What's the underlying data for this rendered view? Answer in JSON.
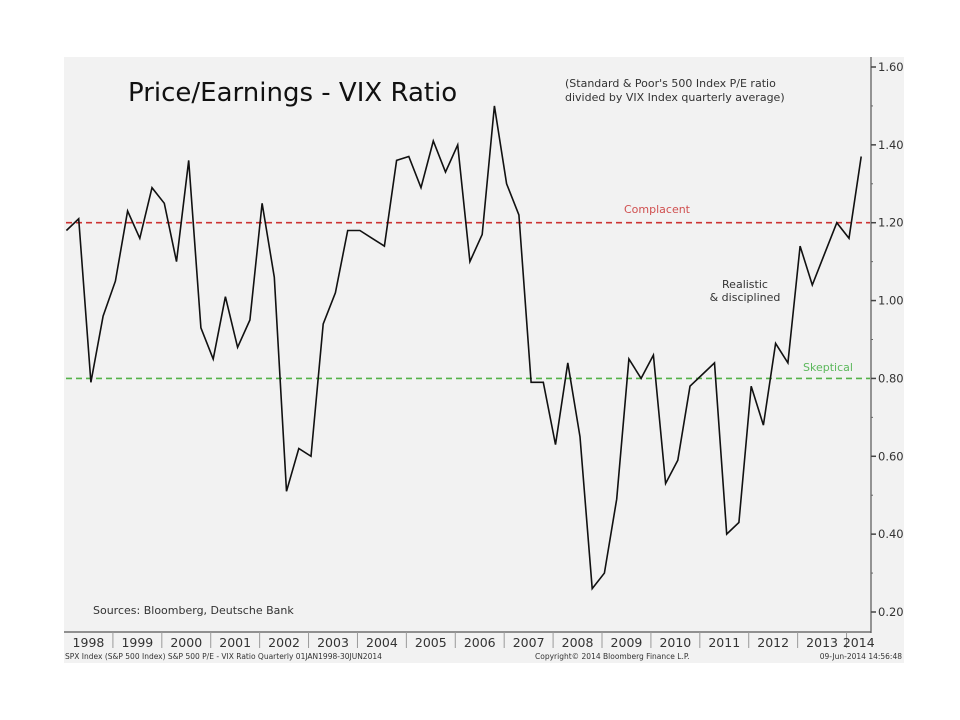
{
  "chart_data": {
    "type": "line",
    "title": "Price/Earnings - VIX Ratio",
    "subtitle": [
      "(Standard & Poor's 500 Index P/E ratio",
      "divided by VIX Index quarterly average)"
    ],
    "xlabel": "",
    "ylabel": "",
    "ylim": [
      0.15,
      1.62
    ],
    "yticks": [
      1.6,
      1.4,
      1.2,
      1.0,
      0.8,
      0.6,
      0.4,
      0.2
    ],
    "ytick_labels": [
      "1.60",
      "1.40",
      "1.20",
      "1.00",
      "0.80",
      "0.60",
      "0.40",
      "0.20"
    ],
    "y_axis_side": "right",
    "x_start_year": 1998,
    "x_end_year": 2014.5,
    "x_categories": [
      "1998",
      "1999",
      "2000",
      "2001",
      "2002",
      "2003",
      "2004",
      "2005",
      "2006",
      "2007",
      "2008",
      "2009",
      "2010",
      "2011",
      "2012",
      "2013",
      "2014"
    ],
    "frequency": "quarterly",
    "grid": false,
    "legend": "none",
    "series": [
      {
        "name": "S&P 500 P/E - VIX Ratio",
        "color": "#111111",
        "values": [
          1.18,
          1.21,
          0.79,
          0.96,
          1.05,
          1.23,
          1.16,
          1.29,
          1.25,
          1.1,
          1.36,
          0.93,
          0.85,
          1.01,
          0.88,
          0.95,
          1.25,
          1.06,
          0.51,
          0.62,
          0.6,
          0.94,
          1.02,
          1.18,
          1.18,
          1.16,
          1.14,
          1.36,
          1.37,
          1.29,
          1.41,
          1.33,
          1.4,
          1.1,
          1.17,
          1.5,
          1.3,
          1.22,
          0.79,
          0.79,
          0.63,
          0.84,
          0.65,
          0.26,
          0.3,
          0.49,
          0.85,
          0.8,
          0.86,
          0.53,
          0.59,
          0.78,
          0.81,
          0.84,
          0.4,
          0.43,
          0.78,
          0.68,
          0.89,
          0.84,
          1.14,
          1.04,
          1.12,
          1.2,
          1.16,
          1.37
        ]
      }
    ],
    "reference_lines": [
      {
        "name": "Complacent",
        "value": 1.2,
        "color": "#cc3333",
        "label_color": "#d05050"
      },
      {
        "name": "Skeptical",
        "value": 0.8,
        "color": "#55b34a",
        "label_color": "#5cb85c"
      }
    ],
    "annotations": [
      {
        "text": [
          "Realistic",
          "& disciplined"
        ],
        "x_year": 2013.0,
        "y": 1.03,
        "color": "#333333"
      }
    ],
    "source_note": "Sources: Bloomberg, Deutsche Bank"
  },
  "footer": {
    "left": "SPX Index (S&P 500 Index) S&P 500 P/E - VIX Ratio  Quarterly 01JAN1998-30JUN2014",
    "center": "Copyright© 2014 Bloomberg Finance L.P.",
    "right": "09-Jun-2014 14:56:48"
  },
  "colors": {
    "panel_background": "#f2f2f2",
    "axis": "#555555",
    "line": "#111111"
  }
}
